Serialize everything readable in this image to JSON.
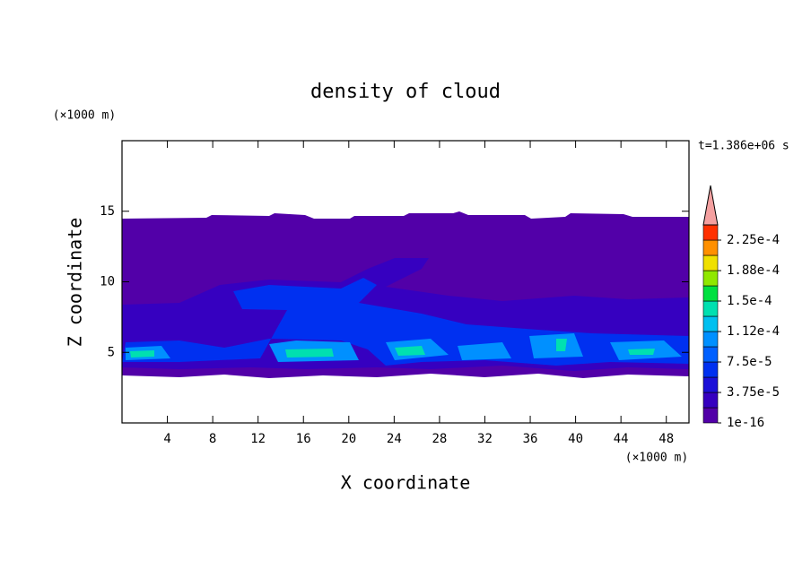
{
  "chart_data": {
    "type": "contour",
    "title": "density of cloud",
    "xlabel": "X coordinate",
    "ylabel": "Z coordinate",
    "x_unit_label": "(×1000 m)",
    "y_unit_label": "(×1000 m)",
    "annotation": "t=1.386e+06 s",
    "xlim": [
      0,
      50
    ],
    "xticks": [
      4,
      8,
      12,
      16,
      20,
      24,
      28,
      32,
      36,
      40,
      44,
      48
    ],
    "ylim": [
      0,
      20
    ],
    "yticks": [
      5,
      10,
      15
    ],
    "clim": [
      0,
      0.00024375
    ],
    "colorbar_ticks": [
      {
        "value": 1e-16,
        "label": "1e-16"
      },
      {
        "value": 3.75e-05,
        "label": "3.75e-5"
      },
      {
        "value": 7.5e-05,
        "label": "7.5e-5"
      },
      {
        "value": 0.0001125,
        "label": "1.12e-4"
      },
      {
        "value": 0.00015,
        "label": "1.5e-4"
      },
      {
        "value": 0.0001875,
        "label": "1.88e-4"
      },
      {
        "value": 0.000225,
        "label": "2.25e-4"
      }
    ],
    "colorbar_colors": [
      "#5200a8",
      "#3600c0",
      "#1c10d8",
      "#0030f0",
      "#0060ff",
      "#0090ff",
      "#00c0f0",
      "#00e0b0",
      "#00e040",
      "#90e800",
      "#f0e000",
      "#ff9000",
      "#ff3000"
    ],
    "extend_color": "#f4a0a0"
  }
}
